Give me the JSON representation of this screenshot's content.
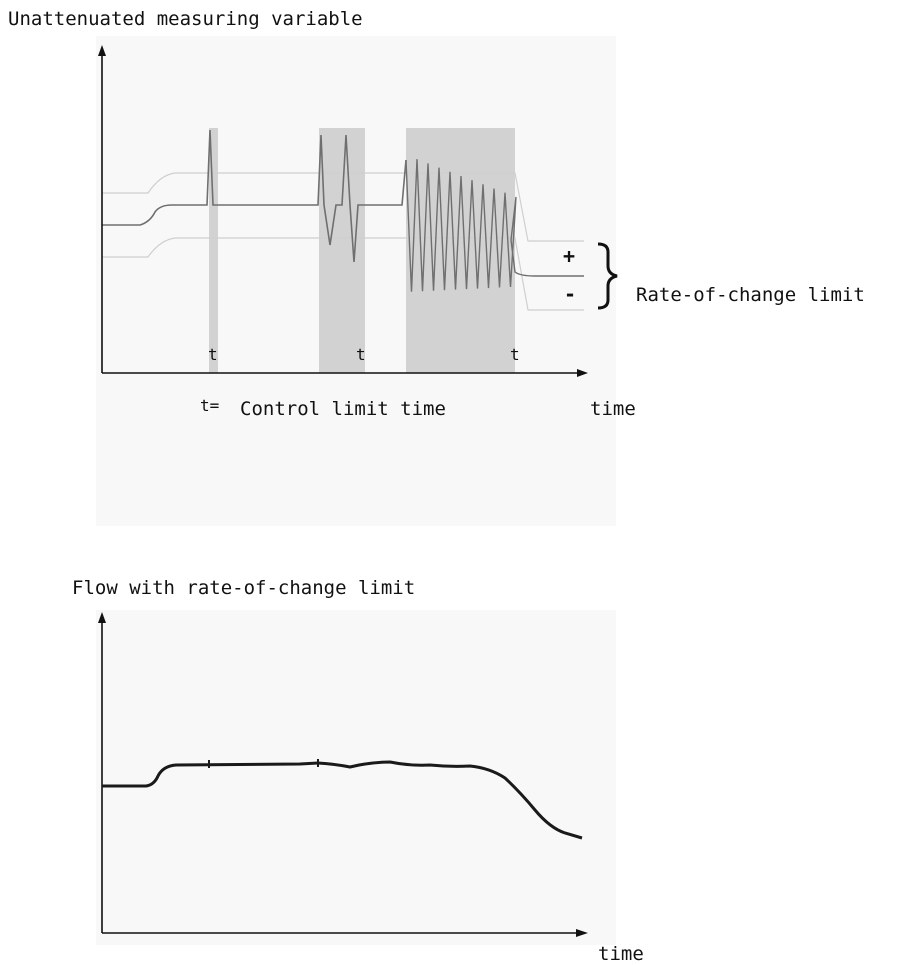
{
  "top_diagram": {
    "title": "Unattenuated measuring variable",
    "x_axis_label": "time",
    "marker_letter": "t",
    "legend_prefix": "t=",
    "legend_text": "Control limit time",
    "plus_sign": "+",
    "minus_sign": "-",
    "brace_label": "Rate-of-change limit"
  },
  "bottom_diagram": {
    "title": "Flow with rate-of-change limit",
    "x_axis_label": "time"
  },
  "colors": {
    "axis": "#111111",
    "shade": "#d2d2d2",
    "signal": "#6f6f6f",
    "limit_line": "#cfcfcf",
    "flow_curve": "#1a1a1a"
  }
}
